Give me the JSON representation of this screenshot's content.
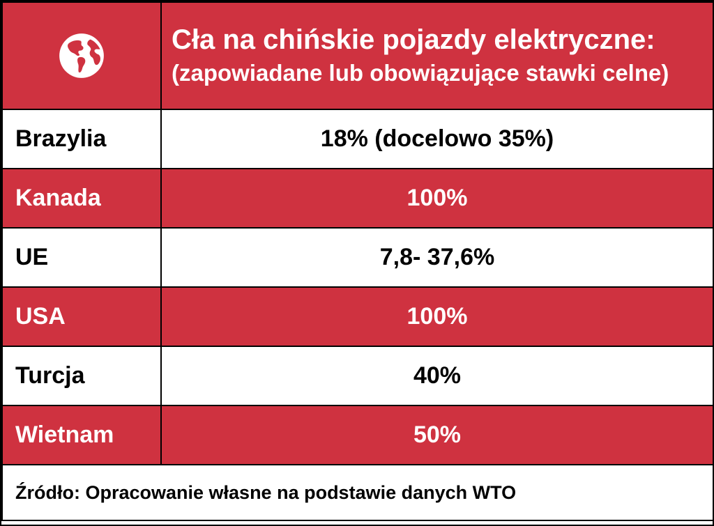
{
  "colors": {
    "accent_red": "#cf3240",
    "white": "#ffffff",
    "border": "#000000"
  },
  "header": {
    "icon": "globe-icon",
    "title": "Cła na chińskie pojazdy elektryczne:",
    "subtitle": "(zapowiadane lub obowiązujące stawki celne)"
  },
  "rows": [
    {
      "country": "Brazylia",
      "value": "18% (docelowo 35%)",
      "style": "white"
    },
    {
      "country": "Kanada",
      "value": "100%",
      "style": "red"
    },
    {
      "country": "UE",
      "value": "7,8- 37,6%",
      "style": "white"
    },
    {
      "country": "USA",
      "value": "100%",
      "style": "red"
    },
    {
      "country": "Turcja",
      "value": "40%",
      "style": "white"
    },
    {
      "country": "Wietnam",
      "value": "50%",
      "style": "red"
    }
  ],
  "source": "Źródło: Opracowanie własne na podstawie danych WTO"
}
